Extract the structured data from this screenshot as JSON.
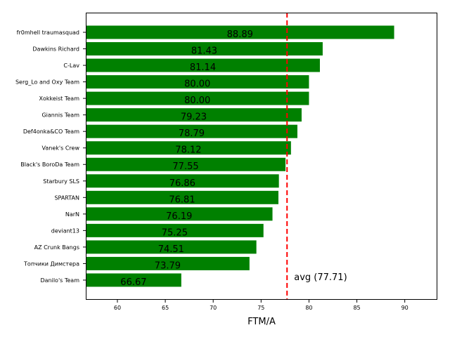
{
  "chart_data": {
    "type": "bar",
    "orientation": "horizontal",
    "title": "",
    "xlabel": "FTM/A",
    "ylabel": "",
    "xlim": [
      56.7,
      93.4
    ],
    "xticks": [
      60,
      65,
      70,
      75,
      80,
      85,
      90
    ],
    "grid": false,
    "bar_color": "#008000",
    "categories": [
      "fr0mhell traumasquad",
      "Dawkins Richard",
      "C-Lav",
      "Serg_Lo and Oxy Team",
      "Xokkeist Team",
      "Giannis Team",
      "Def4onka&CO Team",
      "Vanek's Crew",
      "Black's BoroDa Team",
      "Starbury SLS",
      "SPARTAN",
      "NarN",
      "deviant13",
      "AZ Crunk Bangs",
      "Топчики Димстера",
      "Danilo's Team"
    ],
    "values": [
      88.89,
      81.43,
      81.14,
      80.0,
      80.0,
      79.23,
      78.79,
      78.12,
      77.55,
      76.86,
      76.81,
      76.19,
      75.25,
      74.51,
      73.79,
      66.67
    ],
    "value_labels": [
      "88.89",
      "81.43",
      "81.14",
      "80.00",
      "80.00",
      "79.23",
      "78.79",
      "78.12",
      "77.55",
      "76.86",
      "76.81",
      "76.19",
      "75.25",
      "74.51",
      "73.79",
      "66.67"
    ],
    "reference_line": {
      "value": 77.71,
      "label": "avg (77.71)",
      "color": "#ff0000",
      "style": "dashed"
    }
  }
}
